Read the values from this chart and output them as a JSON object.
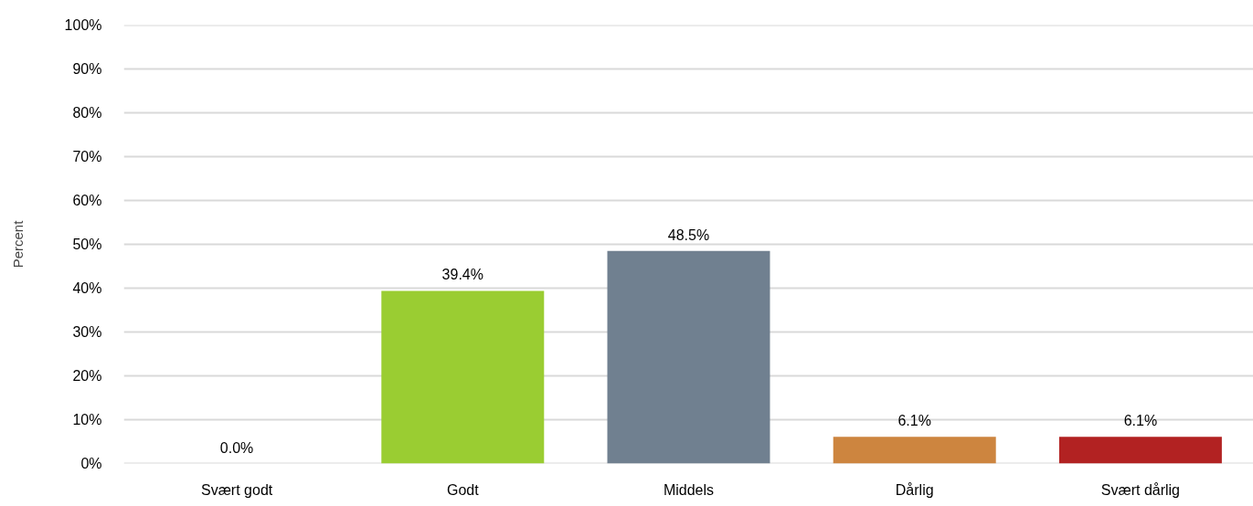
{
  "chart_data": {
    "type": "bar",
    "ylabel": "Percent",
    "categories": [
      "Svært godt",
      "Godt",
      "Middels",
      "Dårlig",
      "Svært dårlig"
    ],
    "values": [
      0.0,
      39.4,
      48.5,
      6.1,
      6.1
    ],
    "colors": [
      null,
      "#9acd32",
      "#708090",
      "#cd853f",
      "#b22222"
    ],
    "value_labels": [
      "0.0%",
      "39.4%",
      "48.5%",
      "6.1%",
      "6.1%"
    ],
    "ylim": [
      0,
      100
    ],
    "yticks": [
      {
        "value": 0,
        "label": "0%"
      },
      {
        "value": 10,
        "label": "10%"
      },
      {
        "value": 20,
        "label": "20%"
      },
      {
        "value": 30,
        "label": "30%"
      },
      {
        "value": 40,
        "label": "40%"
      },
      {
        "value": 50,
        "label": "50%"
      },
      {
        "value": 60,
        "label": "60%"
      },
      {
        "value": 70,
        "label": "70%"
      },
      {
        "value": 80,
        "label": "80%"
      },
      {
        "value": 90,
        "label": "90%"
      },
      {
        "value": 100,
        "label": "100%"
      }
    ],
    "grid": "y"
  }
}
